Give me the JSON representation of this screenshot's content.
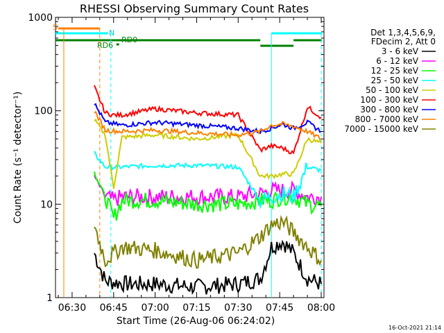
{
  "chart_data": {
    "type": "line",
    "title": "RHESSI Observing Summary Count Rates",
    "xlabel": "Start Time (26-Aug-06 06:24:02)",
    "ylabel": "Count Rate (s⁻¹ detector⁻¹)",
    "y_scale": "log",
    "ylim": [
      1,
      1000
    ],
    "xlim": [
      "06:24",
      "08:01"
    ],
    "x_ticks": [
      "06:30",
      "06:45",
      "07:00",
      "07:15",
      "07:30",
      "07:45",
      "08:00"
    ],
    "y_ticks": [
      "1",
      "10",
      "100",
      "1000"
    ],
    "legend_header": [
      "Det 1,3,4,5,6,9,",
      "FDecim 2, Att 0"
    ],
    "legend_placement": "right",
    "series": [
      {
        "name": "3 - 6 keV",
        "color": "#000000",
        "x": [
          "06:38",
          "06:42",
          "06:50",
          "07:00",
          "07:15",
          "07:30",
          "07:38",
          "07:42",
          "07:46",
          "07:50",
          "07:55",
          "08:00"
        ],
        "values": [
          3.0,
          1.5,
          1.4,
          1.4,
          1.3,
          1.4,
          1.6,
          3.5,
          4.0,
          3.0,
          1.6,
          1.4
        ]
      },
      {
        "name": "6 - 12 keV",
        "color": "#ff00ff",
        "x": [
          "06:38",
          "06:42",
          "06:45",
          "06:48",
          "07:00",
          "07:15",
          "07:30",
          "07:38",
          "07:42",
          "07:46",
          "07:50",
          "07:55",
          "08:00"
        ],
        "values": [
          20,
          12,
          11,
          12,
          12,
          12,
          12,
          13,
          14,
          14,
          14,
          12,
          12
        ]
      },
      {
        "name": "12 - 25 keV",
        "color": "#00ff00",
        "x": [
          "06:38",
          "06:42",
          "06:45",
          "06:48",
          "07:00",
          "07:15",
          "07:30",
          "07:38",
          "07:42",
          "07:46",
          "07:50",
          "07:55",
          "08:00"
        ],
        "values": [
          22,
          12,
          7,
          11,
          11,
          10,
          10,
          11,
          11,
          12,
          12,
          10,
          9.5
        ]
      },
      {
        "name": "25 - 50 keV",
        "color": "#00ffff",
        "x": [
          "06:38",
          "06:42",
          "06:48",
          "07:00",
          "07:15",
          "07:30",
          "07:38",
          "07:42",
          "07:46",
          "07:50",
          "07:55",
          "08:00"
        ],
        "values": [
          35,
          25,
          25,
          26,
          26,
          25,
          11,
          12,
          13,
          12,
          25,
          23
        ]
      },
      {
        "name": "50 - 100 keV",
        "color": "#cccc00",
        "x": [
          "06:38",
          "06:42",
          "06:45",
          "06:48",
          "07:00",
          "07:15",
          "07:30",
          "07:38",
          "07:42",
          "07:46",
          "07:50",
          "07:55",
          "08:00"
        ],
        "values": [
          80,
          55,
          15,
          52,
          55,
          50,
          55,
          20,
          20,
          21,
          21,
          50,
          45
        ]
      },
      {
        "name": "100 - 300 keV",
        "color": "#ff0000",
        "x": [
          "06:38",
          "06:42",
          "06:45",
          "06:48",
          "07:00",
          "07:15",
          "07:30",
          "07:38",
          "07:42",
          "07:46",
          "07:50",
          "07:55",
          "08:00"
        ],
        "values": [
          180,
          95,
          90,
          90,
          105,
          95,
          90,
          38,
          42,
          40,
          35,
          110,
          85
        ]
      },
      {
        "name": "300 - 800 keV",
        "color": "#0000ff",
        "x": [
          "06:38",
          "06:42",
          "06:48",
          "07:00",
          "07:15",
          "07:30",
          "07:38",
          "07:42",
          "07:46",
          "07:50",
          "07:55",
          "08:00"
        ],
        "values": [
          120,
          75,
          70,
          75,
          70,
          65,
          60,
          65,
          72,
          65,
          75,
          60
        ]
      },
      {
        "name": "800 - 7000 keV",
        "color": "#ff8000",
        "x": [
          "06:38",
          "06:42",
          "06:48",
          "07:00",
          "07:15",
          "07:30",
          "07:38",
          "07:42",
          "07:46",
          "07:50",
          "07:55",
          "08:00"
        ],
        "values": [
          100,
          62,
          60,
          62,
          58,
          55,
          60,
          70,
          72,
          68,
          60,
          50
        ]
      },
      {
        "name": "7000 - 15000 keV",
        "color": "#808000",
        "x": [
          "06:38",
          "06:42",
          "06:48",
          "07:00",
          "07:15",
          "07:30",
          "07:38",
          "07:42",
          "07:46",
          "07:50",
          "07:55",
          "08:00"
        ],
        "values": [
          6,
          2.5,
          3.5,
          3.2,
          2.5,
          3.0,
          4.5,
          6.0,
          6.5,
          5.0,
          3.5,
          2.5
        ]
      }
    ],
    "markers": {
      "S_label": "S",
      "N_label": "N",
      "RD0_label": "RD0",
      "RD6_label": "RD6"
    },
    "timestamp": "16-Oct-2021 21:14"
  }
}
